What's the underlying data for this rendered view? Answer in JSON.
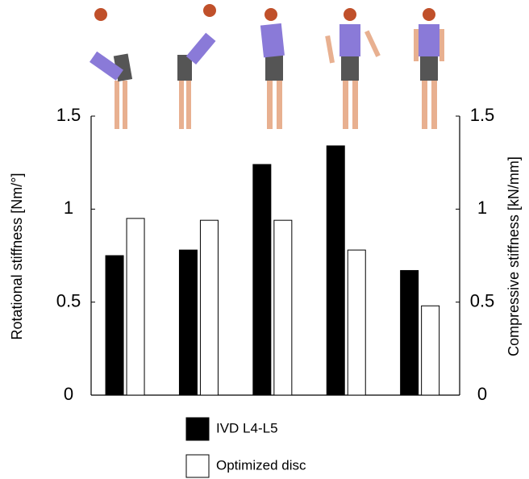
{
  "chart_data": {
    "type": "bar",
    "y_label": "Rotational stiffness [Nm/°]",
    "y2_label": "Compressive stiffness [kN/mm]",
    "categories": [
      null,
      null,
      null,
      null,
      null
    ],
    "series": [
      {
        "name": "IVD L4-L5",
        "color": "#000000",
        "values": [
          0.75,
          0.78,
          1.24,
          1.34,
          0.67
        ]
      },
      {
        "name": "Optimized disc",
        "color": "#ffffff",
        "values": [
          0.95,
          0.94,
          0.94,
          0.78,
          0.48
        ]
      }
    ],
    "ylim": [
      0,
      1.5
    ],
    "yticks": [
      0,
      0.5,
      1,
      1.5
    ],
    "y2lim": [
      0,
      1.5
    ],
    "y2ticks": [
      0,
      0.5,
      1,
      1.5
    ],
    "grid": false
  }
}
